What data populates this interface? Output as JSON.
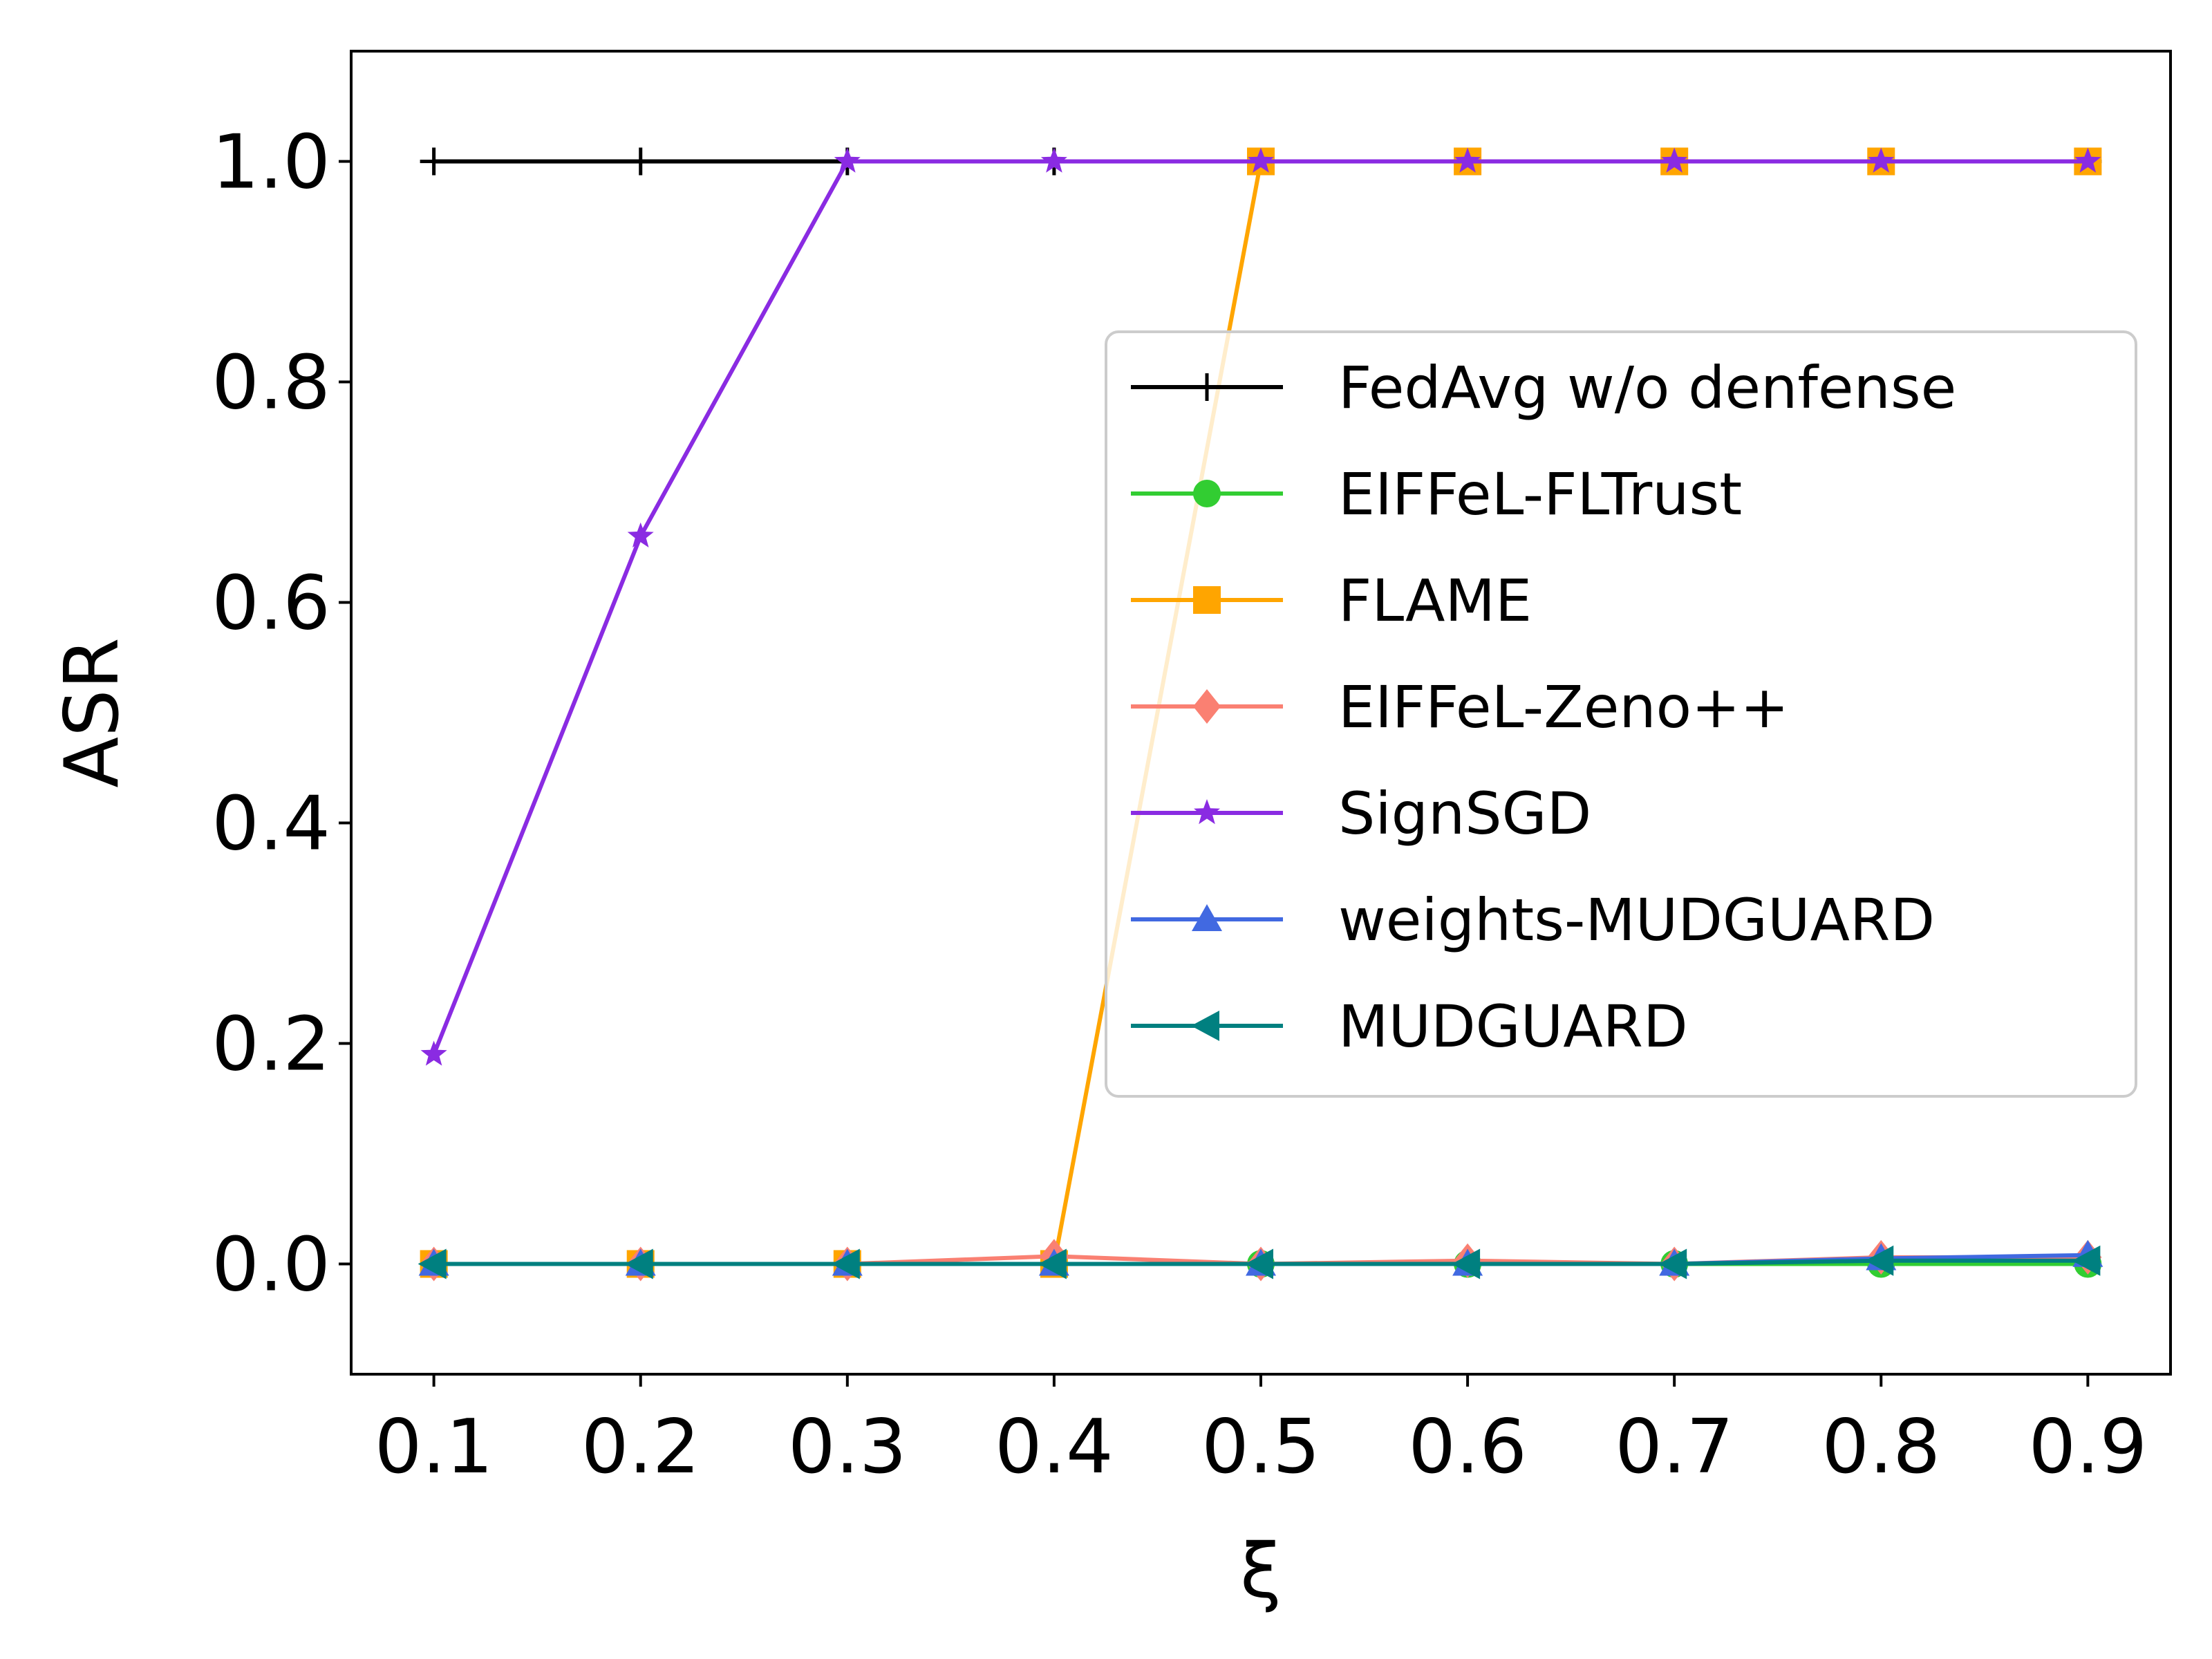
{
  "chart_data": {
    "type": "line",
    "xlabel": "ξ",
    "ylabel": "ASR",
    "xlim": [
      0.06,
      0.94
    ],
    "ylim": [
      -0.1,
      1.1
    ],
    "x": [
      0.1,
      0.2,
      0.3,
      0.4,
      0.5,
      0.6,
      0.7,
      0.8,
      0.9
    ],
    "x_ticks": [
      "0.1",
      "0.2",
      "0.3",
      "0.4",
      "0.5",
      "0.6",
      "0.7",
      "0.8",
      "0.9"
    ],
    "y_ticks": [
      0.0,
      0.2,
      0.4,
      0.6,
      0.8,
      1.0
    ],
    "y_tick_labels": [
      "0.0",
      "0.2",
      "0.4",
      "0.6",
      "0.8",
      "1.0"
    ],
    "grid": false,
    "legend_position": "center-right",
    "series": [
      {
        "name": "FedAvg w/o denfense",
        "color": "#000000",
        "marker": "plus",
        "values": [
          1.0,
          1.0,
          1.0,
          1.0,
          1.0,
          1.0,
          1.0,
          1.0,
          1.0
        ]
      },
      {
        "name": "EIFFeL-FLTrust",
        "color": "#32cd32",
        "marker": "circle",
        "values": [
          0.0,
          0.0,
          0.0,
          0.0,
          0.0,
          0.0,
          0.0,
          0.0,
          0.0
        ]
      },
      {
        "name": "FLAME",
        "color": "#ffa500",
        "marker": "square",
        "values": [
          0.0,
          0.0,
          0.0,
          0.0,
          1.0,
          1.0,
          1.0,
          1.0,
          1.0
        ]
      },
      {
        "name": "EIFFeL-Zeno++",
        "color": "#fa8072",
        "marker": "diamond",
        "values": [
          0.0,
          0.0,
          0.0,
          0.007,
          0.0,
          0.003,
          0.0,
          0.006,
          0.006
        ]
      },
      {
        "name": "SignSGD",
        "color": "#8a2be2",
        "marker": "star",
        "values": [
          0.19,
          0.66,
          1.0,
          1.0,
          1.0,
          1.0,
          1.0,
          1.0,
          1.0
        ]
      },
      {
        "name": "weights-MUDGUARD",
        "color": "#4169e1",
        "marker": "triangle-up",
        "values": [
          0.0,
          0.0,
          0.0,
          0.0,
          0.0,
          0.0,
          0.0,
          0.005,
          0.008
        ]
      },
      {
        "name": "MUDGUARD",
        "color": "#008080",
        "marker": "triangle-left",
        "values": [
          0.0,
          0.0,
          0.0,
          0.0,
          0.0,
          0.0,
          0.0,
          0.003,
          0.003
        ]
      }
    ]
  }
}
